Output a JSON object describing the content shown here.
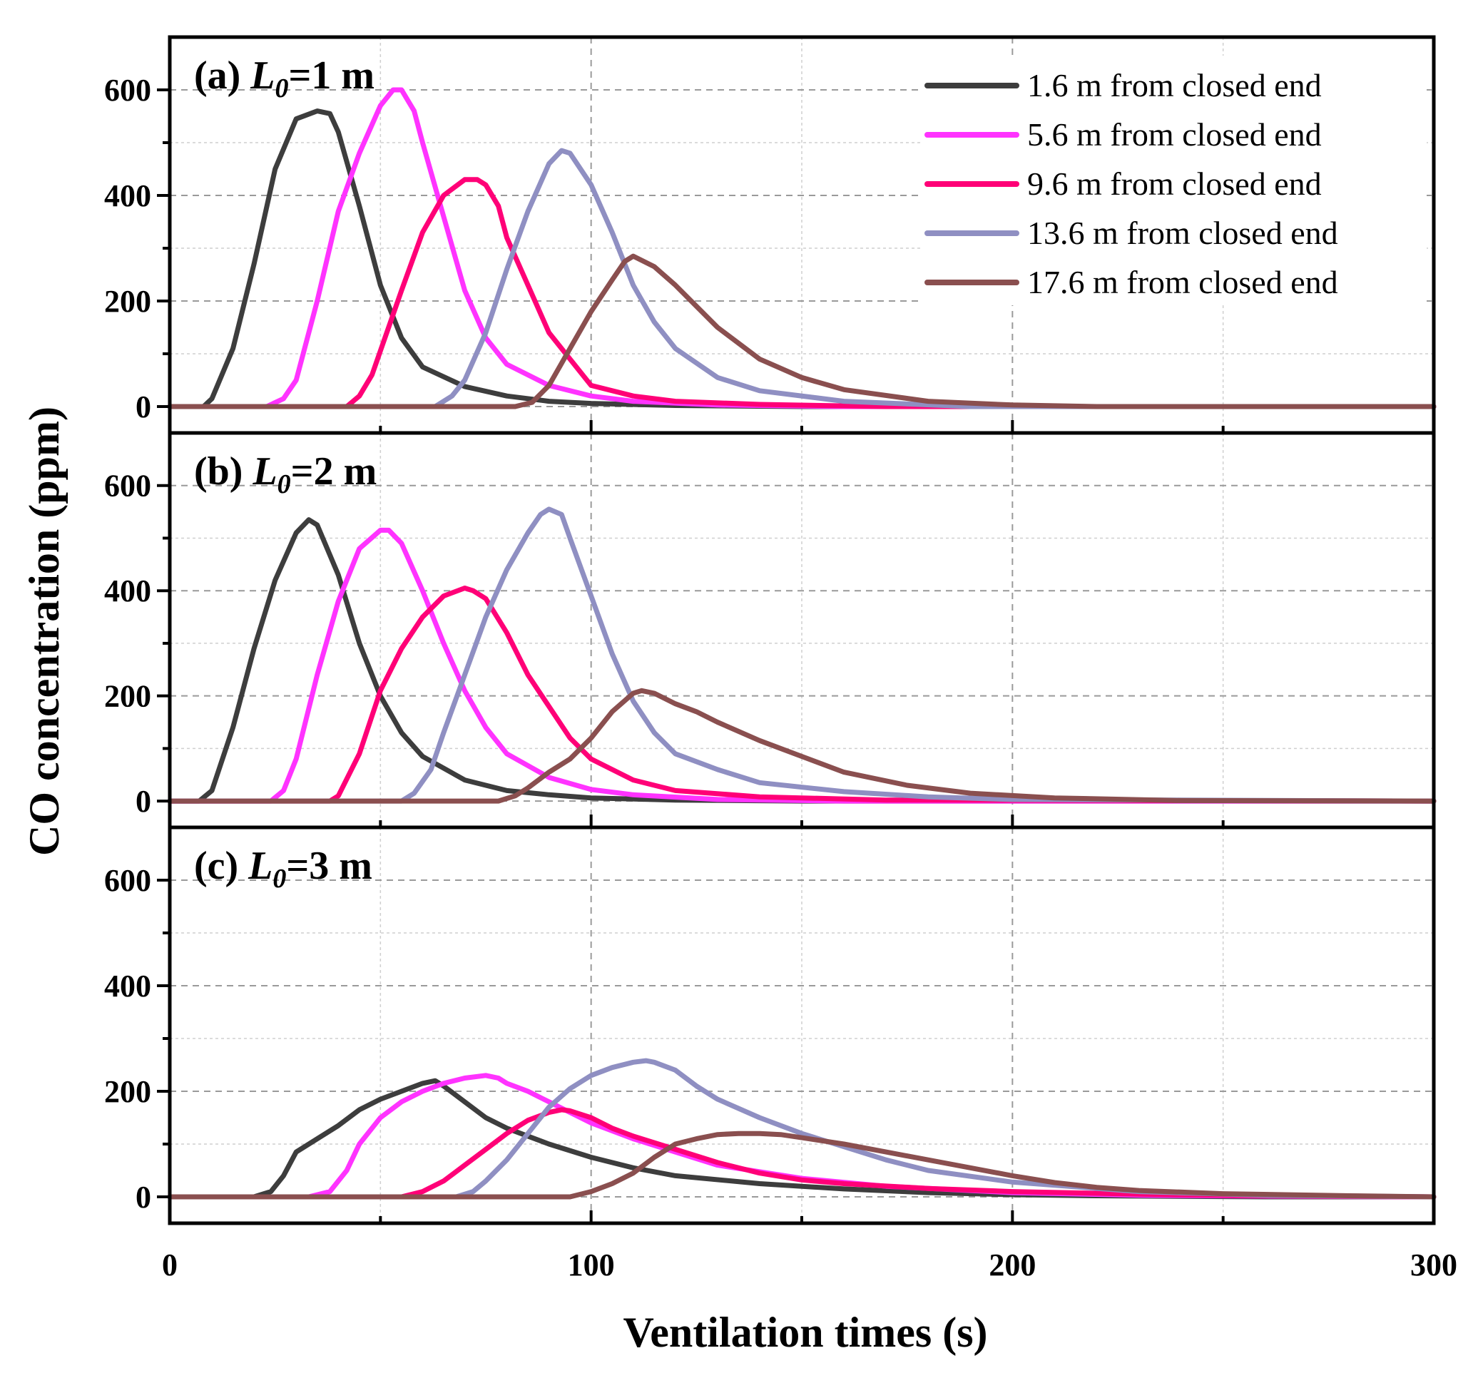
{
  "chart_data": {
    "type": "line",
    "xlabel": "Ventilation times (s)",
    "ylabel": "CO concentration (ppm)",
    "xlim": [
      0,
      300
    ],
    "ylim": [
      -50,
      700
    ],
    "x_ticks": [
      "0",
      "100",
      "200",
      "300"
    ],
    "x_tick_values": [
      0,
      100,
      200,
      300
    ],
    "y_ticks": [
      "0",
      "200",
      "400",
      "600"
    ],
    "y_tick_values": [
      0,
      200,
      400,
      600
    ],
    "grid": true,
    "legend": {
      "placement": "top-right of panel (a)",
      "entries": [
        {
          "name": "1.6 m from closed end",
          "color": "#3d3d3d"
        },
        {
          "name": "5.6 m from closed end",
          "color": "#ff33ff"
        },
        {
          "name": "9.6 m from closed end",
          "color": "#ff0077"
        },
        {
          "name": "13.6 m from closed end",
          "color": "#8f8fc2"
        },
        {
          "name": "17.6 m from closed end",
          "color": "#8a4f4f"
        }
      ]
    },
    "panels": [
      {
        "id": "a",
        "label_prefix": "(a) ",
        "label_var": "L",
        "label_sub": "0",
        "label_suffix": "=1 m",
        "series": [
          {
            "name": "1.6 m from closed end",
            "color": "#3d3d3d",
            "x": [
              0,
              8,
              10,
              15,
              20,
              25,
              30,
              35,
              38,
              40,
              45,
              50,
              55,
              60,
              70,
              80,
              90,
              100,
              120,
              150,
              200,
              300
            ],
            "y": [
              0,
              0,
              15,
              110,
              270,
              450,
              545,
              560,
              555,
              520,
              380,
              230,
              130,
              75,
              38,
              20,
              10,
              6,
              2,
              0,
              0,
              0
            ]
          },
          {
            "name": "5.6 m from closed end",
            "color": "#ff33ff",
            "x": [
              0,
              23,
              27,
              30,
              35,
              40,
              45,
              50,
              53,
              55,
              58,
              60,
              65,
              70,
              75,
              80,
              90,
              100,
              110,
              130,
              160,
              300
            ],
            "y": [
              0,
              0,
              15,
              50,
              200,
              370,
              480,
              570,
              600,
              600,
              560,
              500,
              360,
              220,
              130,
              80,
              40,
              20,
              10,
              3,
              0,
              0
            ]
          },
          {
            "name": "9.6 m from closed end",
            "color": "#ff0077",
            "x": [
              0,
              42,
              45,
              48,
              55,
              60,
              65,
              70,
              73,
              75,
              78,
              80,
              85,
              90,
              95,
              100,
              110,
              120,
              140,
              170,
              300
            ],
            "y": [
              0,
              0,
              20,
              60,
              220,
              330,
              400,
              430,
              430,
              420,
              380,
              320,
              230,
              140,
              90,
              40,
              20,
              10,
              4,
              0,
              0
            ]
          },
          {
            "name": "13.6 m from closed end",
            "color": "#8f8fc2",
            "x": [
              0,
              63,
              67,
              70,
              75,
              80,
              85,
              90,
              93,
              95,
              100,
              105,
              110,
              115,
              120,
              130,
              140,
              160,
              190,
              300
            ],
            "y": [
              0,
              0,
              20,
              50,
              140,
              260,
              370,
              460,
              485,
              480,
              420,
              330,
              230,
              160,
              110,
              55,
              30,
              10,
              0,
              0
            ]
          },
          {
            "name": "17.6 m from closed end",
            "color": "#8a4f4f",
            "x": [
              0,
              82,
              86,
              90,
              95,
              100,
              105,
              108,
              110,
              115,
              120,
              125,
              130,
              140,
              150,
              160,
              180,
              200,
              220,
              300
            ],
            "y": [
              0,
              0,
              8,
              40,
              110,
              180,
              240,
              275,
              285,
              265,
              230,
              190,
              150,
              90,
              55,
              32,
              10,
              3,
              0,
              0
            ]
          }
        ]
      },
      {
        "id": "b",
        "label_prefix": "(b) ",
        "label_var": "L",
        "label_sub": "0",
        "label_suffix": "=2 m",
        "series": [
          {
            "name": "1.6 m from closed end",
            "color": "#3d3d3d",
            "x": [
              0,
              7,
              10,
              15,
              20,
              25,
              30,
              33,
              35,
              40,
              45,
              50,
              55,
              60,
              70,
              80,
              90,
              100,
              120,
              150,
              300
            ],
            "y": [
              0,
              0,
              20,
              140,
              290,
              420,
              510,
              535,
              525,
              430,
              300,
              200,
              130,
              85,
              40,
              20,
              12,
              6,
              2,
              0,
              0
            ]
          },
          {
            "name": "5.6 m from closed end",
            "color": "#ff33ff",
            "x": [
              0,
              24,
              27,
              30,
              35,
              40,
              45,
              50,
              52,
              55,
              60,
              65,
              70,
              75,
              80,
              90,
              100,
              110,
              130,
              160,
              300
            ],
            "y": [
              0,
              0,
              20,
              80,
              240,
              380,
              480,
              515,
              515,
              490,
              400,
              300,
              210,
              140,
              90,
              45,
              22,
              12,
              3,
              0,
              0
            ]
          },
          {
            "name": "9.6 m from closed end",
            "color": "#ff0077",
            "x": [
              0,
              38,
              40,
              45,
              50,
              55,
              60,
              65,
              70,
              72,
              75,
              80,
              85,
              90,
              95,
              100,
              110,
              120,
              140,
              170,
              300
            ],
            "y": [
              0,
              0,
              10,
              90,
              210,
              290,
              350,
              390,
              405,
              400,
              385,
              320,
              240,
              180,
              120,
              80,
              40,
              20,
              8,
              2,
              0
            ]
          },
          {
            "name": "13.6 m from closed end",
            "color": "#8f8fc2",
            "x": [
              0,
              55,
              58,
              62,
              65,
              70,
              75,
              80,
              85,
              88,
              90,
              93,
              95,
              100,
              105,
              110,
              115,
              120,
              130,
              140,
              160,
              180,
              200,
              300
            ],
            "y": [
              0,
              0,
              15,
              60,
              130,
              240,
              350,
              440,
              510,
              545,
              555,
              545,
              500,
              390,
              280,
              190,
              130,
              90,
              60,
              35,
              18,
              8,
              3,
              0
            ]
          },
          {
            "name": "17.6 m from closed end",
            "color": "#8a4f4f",
            "x": [
              0,
              78,
              82,
              85,
              90,
              95,
              100,
              105,
              110,
              112,
              115,
              120,
              125,
              130,
              140,
              150,
              160,
              175,
              190,
              210,
              240,
              300
            ],
            "y": [
              0,
              0,
              10,
              25,
              55,
              80,
              120,
              170,
              205,
              210,
              205,
              185,
              170,
              150,
              115,
              85,
              55,
              30,
              15,
              6,
              1,
              0
            ]
          }
        ]
      },
      {
        "id": "c",
        "label_prefix": "(c) ",
        "label_var": "L",
        "label_sub": "0",
        "label_suffix": "=3 m",
        "series": [
          {
            "name": "1.6 m from closed end",
            "color": "#3d3d3d",
            "x": [
              0,
              20,
              24,
              27,
              30,
              35,
              40,
              45,
              50,
              55,
              60,
              63,
              65,
              70,
              75,
              80,
              90,
              100,
              110,
              120,
              140,
              160,
              180,
              200,
              220,
              260,
              300
            ],
            "y": [
              0,
              0,
              10,
              40,
              85,
              110,
              135,
              165,
              185,
              200,
              215,
              220,
              210,
              180,
              150,
              130,
              100,
              75,
              55,
              40,
              25,
              15,
              8,
              4,
              2,
              0,
              0
            ]
          },
          {
            "name": "5.6 m from closed end",
            "color": "#ff33ff",
            "x": [
              0,
              33,
              38,
              42,
              45,
              50,
              55,
              60,
              65,
              70,
              75,
              78,
              80,
              85,
              90,
              95,
              100,
              110,
              120,
              130,
              150,
              170,
              200,
              230,
              270,
              300
            ],
            "y": [
              0,
              0,
              10,
              50,
              100,
              150,
              180,
              200,
              215,
              225,
              230,
              225,
              215,
              200,
              180,
              160,
              140,
              110,
              85,
              60,
              35,
              20,
              8,
              3,
              1,
              0
            ]
          },
          {
            "name": "9.6 m from closed end",
            "color": "#ff0077",
            "x": [
              0,
              55,
              60,
              65,
              70,
              75,
              80,
              85,
              90,
              93,
              95,
              100,
              105,
              110,
              120,
              130,
              140,
              150,
              160,
              180,
              200,
              230,
              260,
              300
            ],
            "y": [
              0,
              0,
              10,
              30,
              60,
              90,
              120,
              145,
              160,
              165,
              163,
              150,
              130,
              115,
              90,
              65,
              45,
              32,
              25,
              16,
              10,
              5,
              2,
              0
            ]
          },
          {
            "name": "13.6 m from closed end",
            "color": "#8f8fc2",
            "x": [
              0,
              68,
              72,
              75,
              80,
              85,
              90,
              95,
              100,
              105,
              110,
              113,
              115,
              120,
              125,
              130,
              140,
              150,
              160,
              170,
              180,
              200,
              230,
              260,
              300
            ],
            "y": [
              0,
              0,
              10,
              30,
              70,
              120,
              170,
              205,
              230,
              245,
              255,
              258,
              255,
              240,
              210,
              185,
              150,
              120,
              95,
              70,
              50,
              28,
              10,
              3,
              0
            ]
          },
          {
            "name": "17.6 m from closed end",
            "color": "#8a4f4f",
            "x": [
              0,
              95,
              100,
              105,
              110,
              115,
              120,
              125,
              130,
              135,
              140,
              145,
              150,
              160,
              170,
              180,
              190,
              200,
              210,
              220,
              230,
              250,
              280,
              300
            ],
            "y": [
              0,
              0,
              10,
              25,
              45,
              75,
              100,
              110,
              118,
              120,
              120,
              118,
              112,
              100,
              85,
              70,
              55,
              40,
              27,
              18,
              12,
              6,
              2,
              0
            ]
          }
        ]
      }
    ]
  }
}
